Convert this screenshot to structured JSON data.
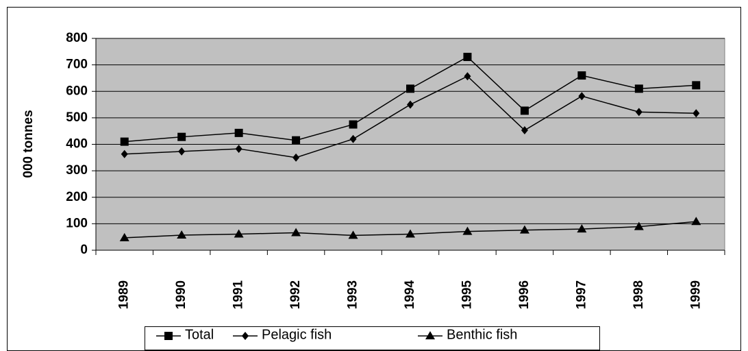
{
  "chart_data": {
    "type": "line",
    "y_label": "000 tonnes",
    "categories": [
      "1989",
      "1990",
      "1991",
      "1992",
      "1993",
      "1994",
      "1995",
      "1996",
      "1997",
      "1998",
      "1999"
    ],
    "series": [
      {
        "name": "Total",
        "color": "#000000",
        "marker": "square",
        "values": [
          410,
          428,
          443,
          415,
          475,
          610,
          730,
          527,
          660,
          610,
          623
        ]
      },
      {
        "name": "Pelagic fish",
        "color": "#000000",
        "marker": "diamond",
        "values": [
          363,
          373,
          383,
          350,
          420,
          550,
          657,
          453,
          582,
          522,
          517
        ]
      },
      {
        "name": "Benthic fish",
        "color": "#000000",
        "marker": "triangle",
        "values": [
          47,
          57,
          61,
          66,
          56,
          61,
          71,
          76,
          80,
          89,
          108
        ]
      }
    ],
    "ylim": [
      0,
      800
    ],
    "yticks": [
      0,
      100,
      200,
      300,
      400,
      500,
      600,
      700,
      800
    ],
    "grid": true,
    "plot_background": "#c0c0c0",
    "legend": "bottom"
  }
}
